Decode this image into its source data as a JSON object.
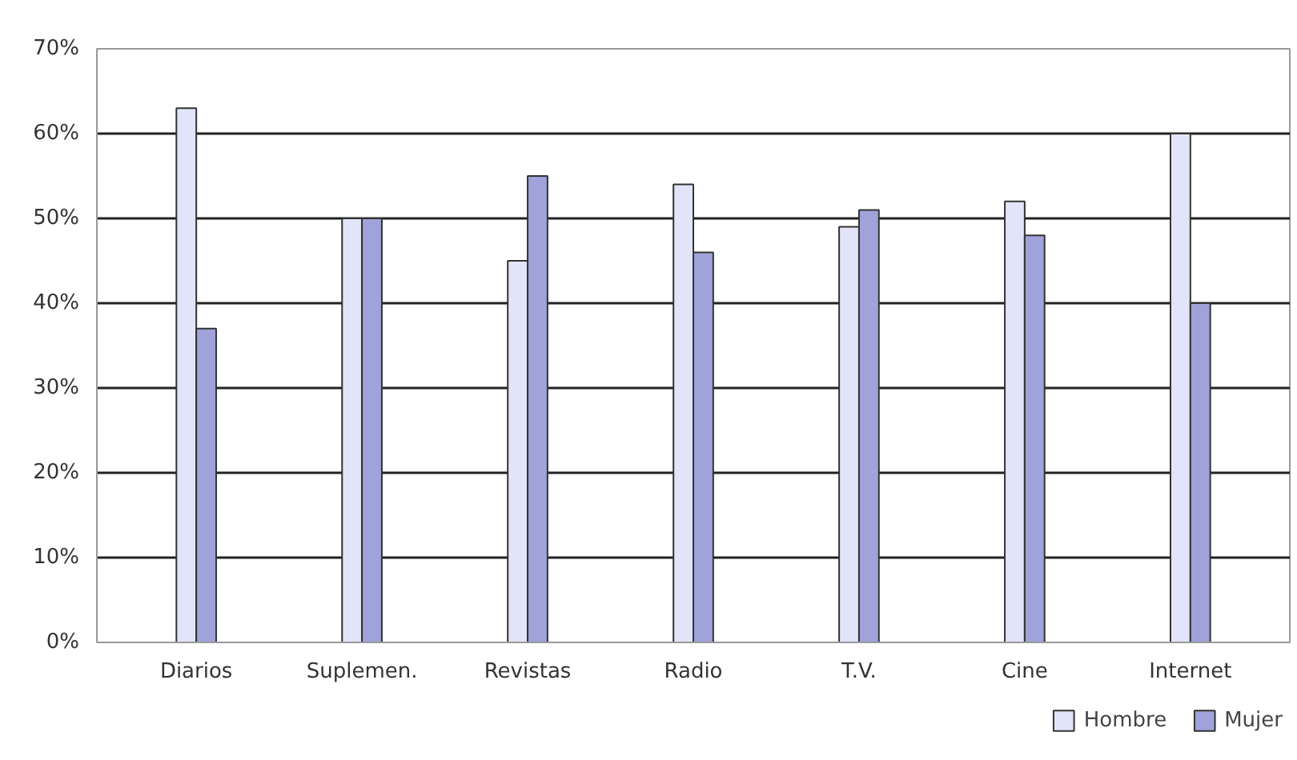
{
  "chart_data": {
    "type": "bar",
    "categories": [
      "Diarios",
      "Suplemen.",
      "Revistas",
      "Radio",
      "T.V.",
      "Cine",
      "Internet"
    ],
    "series": [
      {
        "name": "Hombre",
        "color": "#e2e5f9",
        "values": [
          63,
          50,
          45,
          54,
          49,
          52,
          60
        ]
      },
      {
        "name": "Mujer",
        "color": "#a0a3d9",
        "values": [
          37,
          50,
          55,
          46,
          51,
          48,
          40
        ]
      }
    ],
    "ylim": [
      0,
      70
    ],
    "yticks": [
      {
        "value": 0,
        "label": "0%"
      },
      {
        "value": 10,
        "label": "10%"
      },
      {
        "value": 20,
        "label": "20%"
      },
      {
        "value": 30,
        "label": "30%"
      },
      {
        "value": 40,
        "label": "40%"
      },
      {
        "value": 50,
        "label": "50%"
      },
      {
        "value": 60,
        "label": "60%"
      },
      {
        "value": 70,
        "label": "70%"
      }
    ],
    "grid": "y",
    "legend": "bottom right"
  }
}
